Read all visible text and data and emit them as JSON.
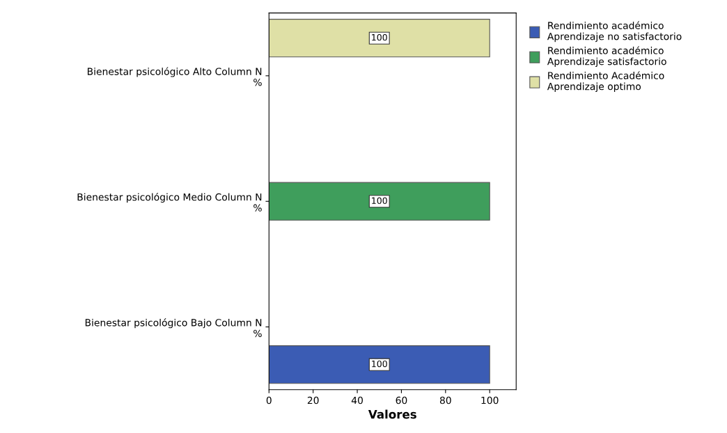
{
  "chart_data": {
    "type": "bar",
    "orientation": "horizontal",
    "categories": [
      "Bienestar psicológico Alto Column N\n%",
      "Bienestar psicológico Medio Column N\n%",
      "Bienestar psicológico Bajo Column N\n%"
    ],
    "series": [
      {
        "name": "Rendimiento académico\nAprendizaje no satisfactorio",
        "color": "#3b5cb4",
        "values": [
          null,
          null,
          100
        ]
      },
      {
        "name": "Rendimiento académico\nAprendizaje satisfactorio",
        "color": "#3f9e5c",
        "values": [
          null,
          100,
          null
        ]
      },
      {
        "name": "Rendimiento Académico\nAprendizaje optimo",
        "color": "#dfe0a6",
        "values": [
          100,
          null,
          null
        ]
      }
    ],
    "xlabel": "Valores",
    "xlim": [
      0,
      112
    ],
    "xticks": [
      0,
      20,
      40,
      60,
      80,
      100
    ],
    "data_labels": true,
    "grid": false,
    "legend": "top right"
  }
}
